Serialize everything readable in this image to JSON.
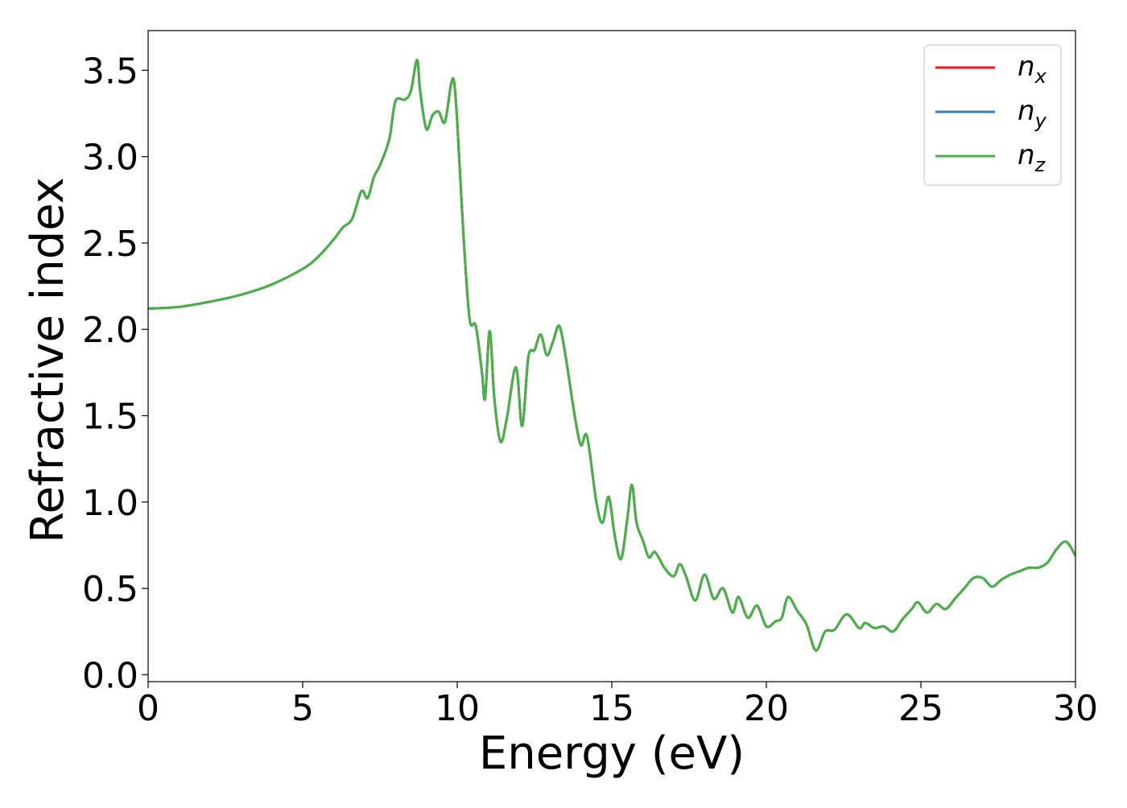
{
  "chart_data": {
    "type": "line",
    "title": "",
    "xlabel": "Energy (eV)",
    "ylabel": "Refractive index",
    "xlim": [
      0,
      30
    ],
    "ylim": [
      -0.04,
      3.73
    ],
    "xticks": [
      0,
      5,
      10,
      15,
      20,
      25,
      30
    ],
    "xtick_labels": [
      "0",
      "5",
      "10",
      "15",
      "20",
      "25",
      "30"
    ],
    "yticks": [
      0.0,
      0.5,
      1.0,
      1.5,
      2.0,
      2.5,
      3.0,
      3.5
    ],
    "ytick_labels": [
      "0.0",
      "0.5",
      "1.0",
      "1.5",
      "2.0",
      "2.5",
      "3.0",
      "3.5"
    ],
    "grid": false,
    "legend_position": "top-right",
    "x": [
      0,
      1,
      2,
      3,
      4,
      5,
      5.5,
      6,
      6.3,
      6.6,
      6.9,
      7.1,
      7.3,
      7.5,
      7.8,
      8.0,
      8.3,
      8.5,
      8.7,
      8.8,
      9.0,
      9.2,
      9.4,
      9.6,
      9.8,
      9.9,
      10.0,
      10.2,
      10.4,
      10.6,
      10.8,
      10.9,
      11.05,
      11.2,
      11.4,
      11.6,
      11.9,
      12.1,
      12.3,
      12.5,
      12.7,
      12.9,
      13.1,
      13.3,
      13.5,
      13.8,
      14.0,
      14.2,
      14.5,
      14.7,
      14.9,
      15.1,
      15.3,
      15.5,
      15.65,
      15.8,
      16.0,
      16.2,
      16.4,
      16.7,
      17.0,
      17.2,
      17.4,
      17.7,
      18.0,
      18.3,
      18.6,
      18.9,
      19.1,
      19.4,
      19.7,
      20.0,
      20.3,
      20.5,
      20.7,
      21.0,
      21.3,
      21.6,
      21.9,
      22.2,
      22.6,
      23.0,
      23.2,
      23.5,
      23.8,
      24.1,
      24.4,
      24.7,
      24.9,
      25.2,
      25.5,
      25.8,
      26.1,
      26.4,
      26.7,
      27.0,
      27.3,
      27.6,
      27.9,
      28.2,
      28.5,
      28.8,
      29.1,
      29.4,
      29.7,
      30.0
    ],
    "series": [
      {
        "name": "n_x",
        "label_base": "n",
        "label_sub": "x",
        "color": "#e41a1c",
        "y": [
          2.12,
          2.13,
          2.16,
          2.2,
          2.26,
          2.35,
          2.42,
          2.52,
          2.59,
          2.64,
          2.8,
          2.76,
          2.88,
          2.95,
          3.1,
          3.32,
          3.33,
          3.38,
          3.56,
          3.38,
          3.16,
          3.24,
          3.26,
          3.2,
          3.42,
          3.43,
          3.2,
          2.55,
          2.06,
          2.02,
          1.75,
          1.6,
          1.99,
          1.6,
          1.35,
          1.48,
          1.78,
          1.44,
          1.84,
          1.88,
          1.97,
          1.85,
          1.93,
          2.02,
          1.85,
          1.5,
          1.33,
          1.38,
          1.0,
          0.88,
          1.03,
          0.8,
          0.67,
          0.9,
          1.1,
          0.88,
          0.78,
          0.68,
          0.71,
          0.62,
          0.57,
          0.64,
          0.57,
          0.43,
          0.58,
          0.44,
          0.5,
          0.36,
          0.45,
          0.33,
          0.4,
          0.28,
          0.31,
          0.33,
          0.45,
          0.37,
          0.29,
          0.14,
          0.25,
          0.26,
          0.35,
          0.27,
          0.3,
          0.27,
          0.28,
          0.25,
          0.32,
          0.38,
          0.42,
          0.36,
          0.41,
          0.38,
          0.44,
          0.5,
          0.56,
          0.56,
          0.51,
          0.55,
          0.58,
          0.6,
          0.62,
          0.62,
          0.65,
          0.73,
          0.77,
          0.69
        ]
      },
      {
        "name": "n_y",
        "label_base": "n",
        "label_sub": "y",
        "color": "#377eb8",
        "y": [
          2.12,
          2.13,
          2.16,
          2.2,
          2.26,
          2.35,
          2.42,
          2.52,
          2.59,
          2.64,
          2.8,
          2.76,
          2.88,
          2.95,
          3.1,
          3.32,
          3.33,
          3.38,
          3.56,
          3.38,
          3.16,
          3.24,
          3.26,
          3.2,
          3.42,
          3.43,
          3.2,
          2.55,
          2.06,
          2.02,
          1.75,
          1.6,
          1.99,
          1.6,
          1.35,
          1.48,
          1.78,
          1.44,
          1.84,
          1.88,
          1.97,
          1.85,
          1.93,
          2.02,
          1.85,
          1.5,
          1.33,
          1.38,
          1.0,
          0.88,
          1.03,
          0.8,
          0.67,
          0.9,
          1.1,
          0.88,
          0.78,
          0.68,
          0.71,
          0.62,
          0.57,
          0.64,
          0.57,
          0.43,
          0.58,
          0.44,
          0.5,
          0.36,
          0.45,
          0.33,
          0.4,
          0.28,
          0.31,
          0.33,
          0.45,
          0.37,
          0.29,
          0.14,
          0.25,
          0.26,
          0.35,
          0.27,
          0.3,
          0.27,
          0.28,
          0.25,
          0.32,
          0.38,
          0.42,
          0.36,
          0.41,
          0.38,
          0.44,
          0.5,
          0.56,
          0.56,
          0.51,
          0.55,
          0.58,
          0.6,
          0.62,
          0.62,
          0.65,
          0.73,
          0.77,
          0.69
        ]
      },
      {
        "name": "n_z",
        "label_base": "n",
        "label_sub": "z",
        "color": "#4daf4a",
        "y": [
          2.12,
          2.13,
          2.16,
          2.2,
          2.26,
          2.35,
          2.42,
          2.52,
          2.59,
          2.64,
          2.8,
          2.76,
          2.88,
          2.95,
          3.1,
          3.32,
          3.33,
          3.38,
          3.56,
          3.38,
          3.16,
          3.24,
          3.26,
          3.2,
          3.42,
          3.43,
          3.2,
          2.55,
          2.06,
          2.02,
          1.75,
          1.6,
          1.99,
          1.6,
          1.35,
          1.48,
          1.78,
          1.44,
          1.84,
          1.88,
          1.97,
          1.85,
          1.93,
          2.02,
          1.85,
          1.5,
          1.33,
          1.38,
          1.0,
          0.88,
          1.03,
          0.8,
          0.67,
          0.9,
          1.1,
          0.88,
          0.78,
          0.68,
          0.71,
          0.62,
          0.57,
          0.64,
          0.57,
          0.43,
          0.58,
          0.44,
          0.5,
          0.36,
          0.45,
          0.33,
          0.4,
          0.28,
          0.31,
          0.33,
          0.45,
          0.37,
          0.29,
          0.14,
          0.25,
          0.26,
          0.35,
          0.27,
          0.3,
          0.27,
          0.28,
          0.25,
          0.32,
          0.38,
          0.42,
          0.36,
          0.41,
          0.38,
          0.44,
          0.5,
          0.56,
          0.56,
          0.51,
          0.55,
          0.58,
          0.6,
          0.62,
          0.62,
          0.65,
          0.73,
          0.77,
          0.69
        ]
      }
    ]
  }
}
